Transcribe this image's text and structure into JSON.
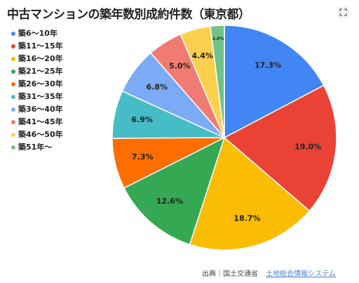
{
  "chart_data": {
    "type": "pie",
    "title": "中古マンションの築年数別成約件数（東京都）",
    "categories": [
      "築6～10年",
      "築11～15年",
      "築16～20年",
      "築21～25年",
      "築26～30年",
      "築31～35年",
      "築36～40年",
      "築41～45年",
      "築46～50年",
      "築51年～"
    ],
    "values": [
      17.3,
      19.0,
      18.7,
      12.6,
      7.3,
      6.9,
      6.8,
      5.0,
      4.4,
      2.0
    ],
    "labels": [
      "17.3%",
      "19.0%",
      "18.7%",
      "12.6%",
      "7.3%",
      "6.9%",
      "6.8%",
      "5.0%",
      "4.4%",
      "2.0%"
    ],
    "colors": [
      "#4285f4",
      "#ea4335",
      "#fbbc04",
      "#34a853",
      "#ff6d01",
      "#46bdc6",
      "#7baaf7",
      "#f07b72",
      "#fcd04f",
      "#71c287"
    ],
    "legend_position": "left"
  },
  "footer": {
    "source_label": "出典｜国土交通省",
    "source_link": "土地総合情報システム"
  },
  "icons": {
    "expand": "expand-icon"
  }
}
